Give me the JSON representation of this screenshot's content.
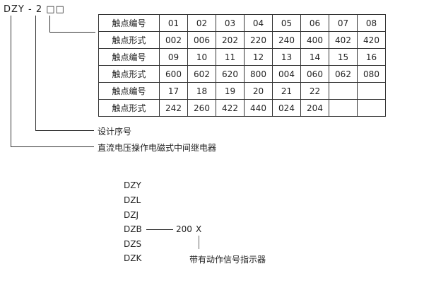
{
  "model_code": "DZY - 2 □□",
  "table": {
    "rows": [
      {
        "label": "触点编号",
        "cells": [
          "01",
          "02",
          "03",
          "04",
          "05",
          "06",
          "07",
          "08"
        ]
      },
      {
        "label": "触点形式",
        "cells": [
          "002",
          "006",
          "202",
          "220",
          "240",
          "400",
          "402",
          "420"
        ]
      },
      {
        "label": "触点编号",
        "cells": [
          "09",
          "10",
          "11",
          "12",
          "13",
          "14",
          "15",
          "16"
        ]
      },
      {
        "label": "触点形式",
        "cells": [
          "600",
          "602",
          "620",
          "800",
          "004",
          "060",
          "062",
          "080"
        ]
      },
      {
        "label": "触点编号",
        "cells": [
          "17",
          "18",
          "19",
          "20",
          "21",
          "22",
          "",
          ""
        ]
      },
      {
        "label": "触点形式",
        "cells": [
          "242",
          "260",
          "422",
          "440",
          "024",
          "204",
          "",
          ""
        ]
      }
    ]
  },
  "labels": {
    "design_serial": "设计序号",
    "relay_type": "直流电压操作电磁式中间继电器"
  },
  "series_list": [
    "DZY",
    "DZL",
    "DZJ",
    "DZB",
    "DZS",
    "DZK"
  ],
  "suffix": {
    "code": "200",
    "x": "X",
    "note": "带有动作信号指示器"
  }
}
